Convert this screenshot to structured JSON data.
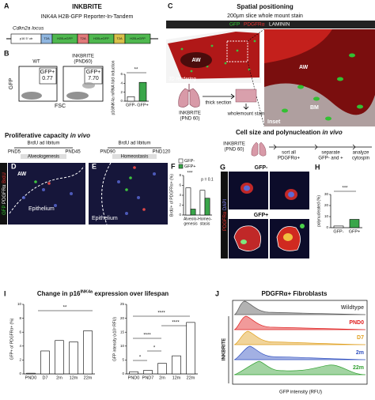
{
  "panel_a": {
    "label": "A",
    "title": "INKBRITE",
    "subtitle": "INK4A H2B-GFP Reporter-In-Tandem",
    "locus": "Cdkn2a locus",
    "construct": [
      "p16 5' utr",
      "T2A",
      "H2B-eGFP",
      "T2A",
      "H2B-eGFP",
      "T2A",
      "H2B-eGFP"
    ]
  },
  "panel_b": {
    "label": "B",
    "flow": [
      {
        "title": "WT",
        "gate": "GFP+",
        "value": "0.77"
      },
      {
        "title": "INKBRITE",
        "subtitle": "(PND60)",
        "gate": "GFP+",
        "value": "7.70"
      }
    ],
    "x_label": "FSC",
    "y_label": "GFP",
    "chart": {
      "type": "bar",
      "ylabel": "p16INK4a mRNA fold induction",
      "categories": [
        "GFP-",
        "GFP+"
      ],
      "values": [
        1,
        4.2
      ],
      "colors": [
        "#ffffff",
        "#3aa64a"
      ],
      "ylim": [
        0,
        6
      ],
      "yticks": [
        0,
        2,
        4,
        6
      ],
      "annotation": "**"
    }
  },
  "panel_c": {
    "label": "C",
    "title": "Spatial positioning",
    "subtitle": "200μm slice whole mount stain",
    "legend": [
      "GFP",
      "PDGFRα",
      "LAMININ"
    ],
    "labels": [
      "AW",
      "3D rendering",
      "AW",
      "Inset",
      "BM"
    ],
    "sample": [
      "INKBRITE",
      "(PND 60)"
    ],
    "steps": [
      "thick section",
      "wholemount stain"
    ]
  },
  "prolif": {
    "title": [
      "Proliferative capacity ",
      "in vivo"
    ],
    "channels": [
      "GFP",
      "PDGFRα",
      "BrdU"
    ]
  },
  "panel_d": {
    "label": "D",
    "treatment": "BrdU ad libitum",
    "start": "PND5",
    "end": "PND45",
    "phase": "Alveologenesis",
    "labels": [
      "AW",
      "Epithelium"
    ]
  },
  "panel_e": {
    "label": "E",
    "treatment": "BrdU ad libitum",
    "start": "PND90",
    "end": "PND120",
    "phase": "Homeostasis",
    "labels": [
      "Epithelium"
    ]
  },
  "panel_f": {
    "label": "F",
    "chart": {
      "type": "bar",
      "ylabel": "BrdU+ of PDGFRα+ (%)",
      "categories": [
        [
          "Alveolo-",
          "genesis"
        ],
        [
          "Homeo-",
          "stasis"
        ]
      ],
      "series": [
        {
          "name": "GFP-",
          "color": "#ffffff",
          "values": [
            5.5,
            5.0
          ]
        },
        {
          "name": "GFP+",
          "color": "#3aa64a",
          "values": [
            1.2,
            3.4
          ]
        }
      ],
      "ylim": [
        0,
        8
      ],
      "yticks": [
        0,
        2,
        4,
        6,
        8
      ],
      "annotations": [
        "***",
        "p = 0.1"
      ]
    }
  },
  "cell_size": {
    "title": [
      "Cell size and polynucleation ",
      "in vivo"
    ],
    "sample": [
      "INKBRITE",
      "(PND 60)"
    ],
    "steps": [
      [
        "sort all",
        "PDGFRα+"
      ],
      [
        "separate",
        "GFP- and +"
      ],
      [
        "analyze",
        "cytospin"
      ]
    ]
  },
  "panel_g": {
    "label": "G",
    "groups": [
      "GFP-",
      "GFP+"
    ],
    "channels": [
      "PDGFRα",
      "DAPI"
    ]
  },
  "panel_h": {
    "label": "H",
    "chart": {
      "type": "bar",
      "ylabel": "polynucleated (%)",
      "categories": [
        "GFP-",
        "GFP+"
      ],
      "values": [
        1.5,
        7.5
      ],
      "colors": [
        "#ffffff",
        "#3aa64a"
      ],
      "ylim": [
        0,
        30
      ],
      "yticks": [
        0,
        10,
        20,
        30
      ],
      "annotation": "***"
    }
  },
  "panel_i": {
    "label": "I",
    "title": [
      "Change in p16",
      "INK4a",
      " expression over lifespan"
    ],
    "charts": [
      {
        "type": "bar",
        "ylabel": "GFP+ of PDGFRα+ (%)",
        "categories": [
          "PND0",
          "D7",
          "2m",
          "12m",
          "22m"
        ],
        "values": [
          0.1,
          3.3,
          4.8,
          4.6,
          6.2
        ],
        "color": "#ffffff",
        "ylim": [
          0,
          10
        ],
        "yticks": [
          0,
          2,
          4,
          6,
          8,
          10
        ],
        "annotations": [
          "**"
        ]
      },
      {
        "type": "bar",
        "ylabel": "GFP intensity (x10³ RFU)",
        "categories": [
          "PND0",
          "PND7",
          "2m",
          "12m",
          "22m"
        ],
        "values": [
          0.8,
          1.3,
          3.8,
          6.5,
          18.5
        ],
        "color": "#ffffff",
        "ylim": [
          0,
          25
        ],
        "yticks": [
          0,
          5,
          10,
          15,
          20,
          25
        ],
        "annotations": [
          "*",
          "*",
          "****",
          "****",
          "****"
        ]
      }
    ]
  },
  "panel_j": {
    "label": "J",
    "title": "PDGFRα+ Fibroblasts",
    "group": "INKBRITE",
    "xlabel": "GFP intensity (RFU)",
    "series": [
      {
        "name": "Wildtype",
        "color": "#555555"
      },
      {
        "name": "PND0",
        "color": "#e02020"
      },
      {
        "name": "D7",
        "color": "#e0a020"
      },
      {
        "name": "2m",
        "color": "#3050c0"
      },
      {
        "name": "22m",
        "color": "#30a030"
      }
    ]
  }
}
